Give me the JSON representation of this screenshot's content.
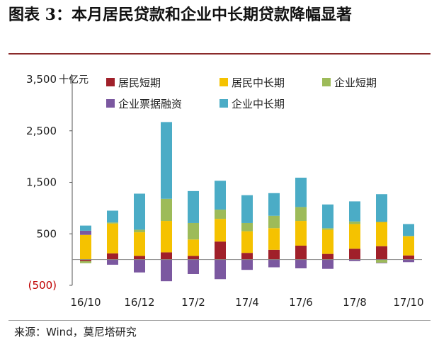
{
  "title": "图表 3：本月居民贷款和企业中长期贷款降幅显著",
  "source": "来源：Wind，莫尼塔研究",
  "chart_data": {
    "type": "bar",
    "stacked": true,
    "unit": "十亿元",
    "ylim": [
      -500,
      3500
    ],
    "yticks": [
      -500,
      500,
      1500,
      2500,
      3500
    ],
    "ytick_labels": [
      "(500)",
      "500",
      "1,500",
      "2,500",
      "3,500"
    ],
    "categories": [
      "16/10",
      "16/11",
      "16/12",
      "17/1",
      "17/2",
      "17/3",
      "17/4",
      "17/5",
      "17/6",
      "17/7",
      "17/8",
      "17/9",
      "17/10"
    ],
    "xtick_labels": [
      "16/10",
      "",
      "16/12",
      "",
      "17/2",
      "",
      "17/4",
      "",
      "17/6",
      "",
      "17/8",
      "",
      "17/10"
    ],
    "legend_position": "top",
    "series": [
      {
        "name": "居民短期",
        "color": "#a0202a",
        "values": [
          -30,
          120,
          70,
          140,
          70,
          350,
          130,
          190,
          270,
          110,
          210,
          260,
          80
        ]
      },
      {
        "name": "居民中长期",
        "color": "#f5c200",
        "values": [
          480,
          580,
          460,
          610,
          320,
          440,
          420,
          420,
          480,
          470,
          480,
          470,
          370
        ]
      },
      {
        "name": "企业短期",
        "color": "#9dbb59",
        "values": [
          -40,
          20,
          50,
          430,
          320,
          180,
          160,
          240,
          270,
          30,
          50,
          -60,
          10
        ]
      },
      {
        "name": "企业票据融资",
        "color": "#7b58a0",
        "values": [
          80,
          -100,
          -250,
          -420,
          -280,
          -380,
          -200,
          -150,
          -170,
          -180,
          -30,
          -10,
          -50
        ]
      },
      {
        "name": "企业中长期",
        "color": "#4bacc6",
        "values": [
          100,
          230,
          700,
          1490,
          620,
          560,
          540,
          440,
          570,
          460,
          390,
          540,
          230
        ]
      }
    ]
  }
}
